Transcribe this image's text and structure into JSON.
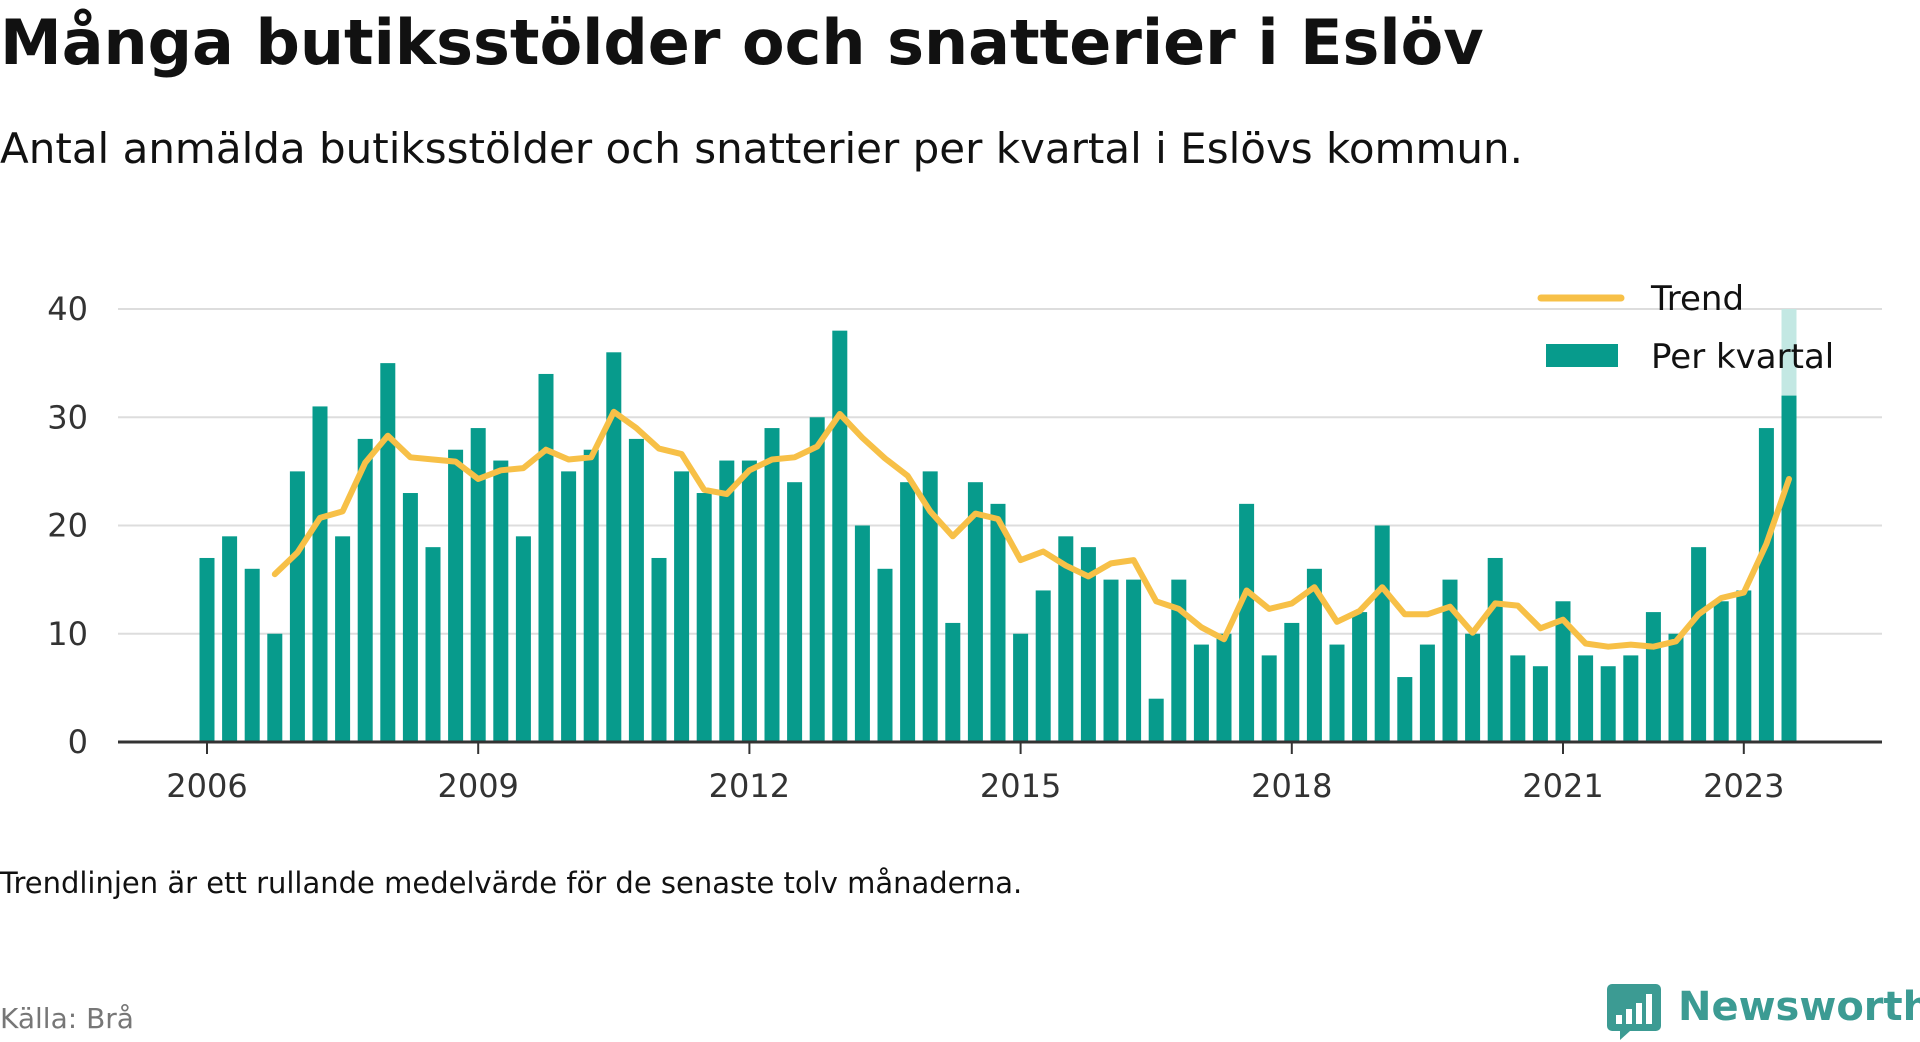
{
  "header": {
    "title": "Många butiksstölder och snatterier i Eslöv",
    "subtitle": "Antal anmälda butiksstölder och snatterier per kvartal i Eslövs kommun."
  },
  "footer": {
    "note": "Trendlinjen är ett rullande medelvärde för de senaste tolv månaderna.",
    "source": "Källa: Brå",
    "brand": "Newsworthy"
  },
  "colors": {
    "bars": "#079b8c",
    "bars_preliminary": "#c3e8e3",
    "trend": "#f7c047",
    "grid": "#dddddd",
    "axis": "#333333",
    "brand": "#3c9b93"
  },
  "chart_data": {
    "type": "bar",
    "x_start": "2006 Q1",
    "xticks": [
      "2006",
      "2009",
      "2012",
      "2015",
      "2018",
      "2021",
      "2023"
    ],
    "ylim": [
      0,
      40
    ],
    "yticks": [
      0,
      10,
      20,
      30,
      40
    ],
    "grid": true,
    "legend": "top-right",
    "series": [
      {
        "name": "Per kvartal",
        "values": [
          17,
          19,
          16,
          10,
          25,
          31,
          19,
          28,
          35,
          23,
          18,
          27,
          29,
          26,
          19,
          34,
          25,
          27,
          36,
          28,
          17,
          25,
          23,
          26,
          26,
          29,
          24,
          30,
          38,
          20,
          16,
          24,
          25,
          11,
          24,
          22,
          10,
          14,
          19,
          18,
          15,
          15,
          4,
          15,
          9,
          10,
          22,
          8,
          11,
          16,
          9,
          12,
          20,
          6,
          9,
          15,
          10,
          17,
          8,
          7,
          13,
          8,
          7,
          8,
          12,
          10,
          18,
          13,
          14,
          29,
          32
        ],
        "last_value_upper": 40
      },
      {
        "name": "Trend",
        "values": [
          null,
          null,
          null,
          15.5,
          17.5,
          20.7,
          21.3,
          25.8,
          28.3,
          26.3,
          26.1,
          25.9,
          24.3,
          25.1,
          25.3,
          27.0,
          26.1,
          26.3,
          30.5,
          29.0,
          27.1,
          26.6,
          23.3,
          22.9,
          25.1,
          26.1,
          26.3,
          27.3,
          30.3,
          28.1,
          26.2,
          24.6,
          21.3,
          19.0,
          21.1,
          20.6,
          16.8,
          17.6,
          16.3,
          15.3,
          16.5,
          16.8,
          13.0,
          12.3,
          10.6,
          9.5,
          14.0,
          12.3,
          12.8,
          14.3,
          11.1,
          12.1,
          14.3,
          11.8,
          11.8,
          12.5,
          10.1,
          12.8,
          12.6,
          10.5,
          11.3,
          9.1,
          8.8,
          9.0,
          8.8,
          9.3,
          11.8,
          13.3,
          13.8,
          18.3,
          24.3
        ]
      }
    ]
  }
}
